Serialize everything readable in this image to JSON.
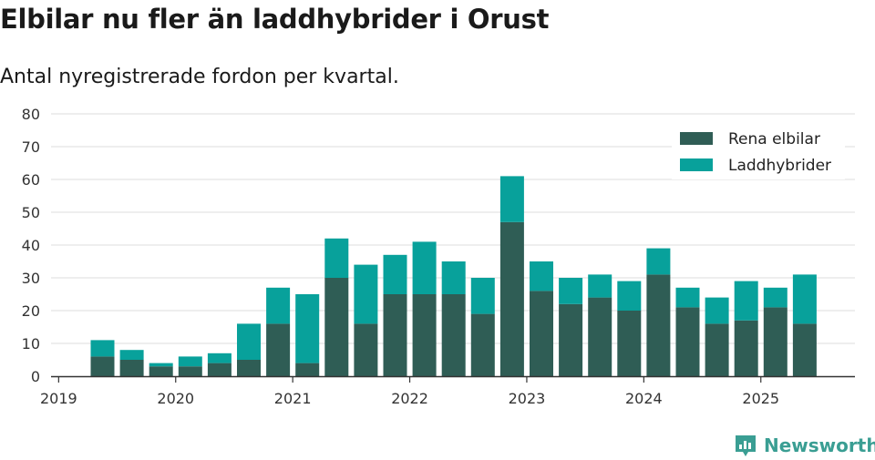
{
  "title": "Elbilar nu fler än laddhybrider i Orust",
  "subtitle": "Antal nyregistrerade fordon per kvartal.",
  "brand": "Newsworthy",
  "colors": {
    "elbil": "#2f5d55",
    "laddhybrid": "#08a19b",
    "grid": "#dddddd",
    "axis": "#333333",
    "brand": "#3a9e93"
  },
  "chart_data": {
    "type": "bar",
    "stacked": true,
    "x_tick_labels": [
      "2019",
      "2020",
      "2021",
      "2022",
      "2023",
      "2024",
      "2025"
    ],
    "categories": [
      "2019 Q2",
      "2019 Q3",
      "2019 Q4",
      "2020 Q1",
      "2020 Q2",
      "2020 Q3",
      "2020 Q4",
      "2021 Q1",
      "2021 Q2",
      "2021 Q3",
      "2021 Q4",
      "2022 Q1",
      "2022 Q2",
      "2022 Q3",
      "2022 Q4",
      "2023 Q1",
      "2023 Q2",
      "2023 Q3",
      "2023 Q4",
      "2024 Q1",
      "2024 Q2",
      "2024 Q3",
      "2024 Q4",
      "2025 Q1",
      "2025 Q2"
    ],
    "series": [
      {
        "name": "Rena elbilar",
        "values": [
          6,
          5,
          3,
          3,
          4,
          5,
          16,
          4,
          30,
          16,
          25,
          25,
          25,
          19,
          47,
          26,
          22,
          24,
          20,
          31,
          21,
          16,
          17,
          21,
          16
        ]
      },
      {
        "name": "Laddhybrider",
        "values": [
          5,
          3,
          1,
          3,
          3,
          11,
          11,
          21,
          12,
          18,
          12,
          16,
          10,
          11,
          14,
          9,
          8,
          7,
          9,
          8,
          6,
          8,
          12,
          6,
          15
        ]
      }
    ],
    "y_ticks": [
      0,
      10,
      20,
      30,
      40,
      50,
      60,
      70,
      80
    ],
    "ylim": [
      0,
      80
    ],
    "grid": true,
    "legend_position": "top-right"
  }
}
